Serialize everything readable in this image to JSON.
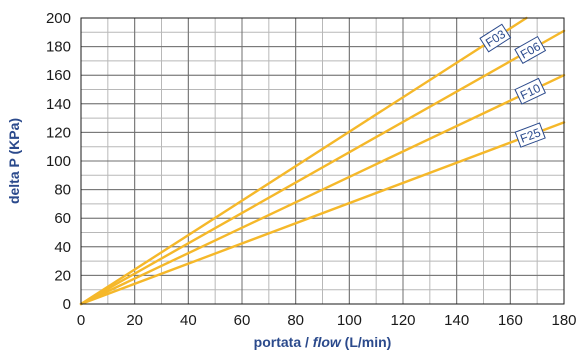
{
  "chart_data": {
    "type": "line",
    "xlabel_parts": [
      "portata / ",
      "flow",
      " (L/min)"
    ],
    "ylabel": "delta P (KPa)",
    "xlim": [
      0,
      180
    ],
    "ylim": [
      0,
      200
    ],
    "x_ticks": [
      0,
      20,
      40,
      60,
      80,
      100,
      120,
      140,
      160,
      180
    ],
    "y_ticks": [
      0,
      20,
      40,
      60,
      80,
      100,
      120,
      140,
      160,
      180,
      200
    ],
    "minor_grid_step_x": 10,
    "minor_grid_step_y": 10,
    "grid": true,
    "line_color": "#f5b82a",
    "label_color": "#2b4a8c",
    "series": [
      {
        "name": "F03",
        "x": [
          0,
          166
        ],
        "y": [
          0,
          200
        ]
      },
      {
        "name": "F06",
        "x": [
          0,
          180
        ],
        "y": [
          0,
          191
        ]
      },
      {
        "name": "F10",
        "x": [
          0,
          180
        ],
        "y": [
          0,
          160
        ]
      },
      {
        "name": "F25",
        "x": [
          0,
          180
        ],
        "y": [
          0,
          127
        ]
      }
    ]
  }
}
